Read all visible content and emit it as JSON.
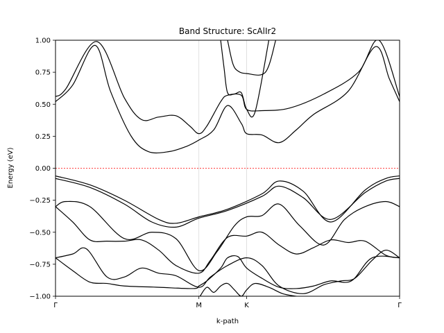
{
  "chart_data": {
    "type": "line",
    "title": "Band Structure: ScAlIr2",
    "xlabel": "k-path",
    "ylabel": "Energy (eV)",
    "ylim": [
      -1.0,
      1.0
    ],
    "yticks": [
      "1.00",
      "0.75",
      "0.50",
      "0.25",
      "0.00",
      "−0.25",
      "−0.50",
      "−0.75",
      "−1.00"
    ],
    "yticks_values": [
      1.0,
      0.75,
      0.5,
      0.25,
      0.0,
      -0.25,
      -0.5,
      -0.75,
      -1.0
    ],
    "k_points": [
      {
        "label": "Γ",
        "x": 0.0
      },
      {
        "label": "M",
        "x": 0.4167
      },
      {
        "label": "K",
        "x": 0.5556
      },
      {
        "label": "Γ",
        "x": 1.0
      }
    ],
    "fermi_level": 0.0,
    "grid": "vertical lines at high-symmetry points",
    "colors": {
      "bands": "#000000",
      "fermi": "#ff0000",
      "grid": "#d9d9d9"
    },
    "series": [
      {
        "x": [
          0.0,
          0.05,
          0.115,
          0.16,
          0.22,
          0.27,
          0.33,
          0.38,
          0.4167,
          0.46,
          0.5,
          0.54,
          0.5556,
          0.6,
          0.65,
          0.7,
          0.75,
          0.85,
          0.93,
          0.97,
          1.0
        ],
        "values": [
          0.52,
          0.65,
          0.96,
          0.6,
          0.25,
          0.13,
          0.13,
          0.17,
          0.22,
          0.3,
          0.49,
          0.35,
          0.27,
          0.26,
          0.2,
          0.3,
          0.42,
          0.6,
          0.95,
          0.7,
          0.52
        ]
      },
      {
        "x": [
          0.0,
          0.03,
          0.12,
          0.2,
          0.25,
          0.3,
          0.35,
          0.39,
          0.4167,
          0.44,
          0.48,
          0.5,
          0.54,
          0.5556,
          0.6,
          0.68,
          0.78,
          0.88,
          0.94,
          1.0
        ],
        "values": [
          0.56,
          0.62,
          0.99,
          0.55,
          0.38,
          0.4,
          0.41,
          0.33,
          0.27,
          0.33,
          0.52,
          0.57,
          0.57,
          0.46,
          0.45,
          0.47,
          0.58,
          0.75,
          1.0,
          0.56
        ]
      },
      {
        "x": [
          0.48,
          0.49,
          0.5,
          0.52,
          0.54,
          0.5556,
          0.58,
          0.62
        ],
        "values": [
          1.0,
          0.78,
          0.59,
          0.58,
          0.59,
          0.46,
          0.44,
          1.0
        ]
      },
      {
        "x": [
          0.5,
          0.515,
          0.53,
          0.5556,
          0.61,
          0.64
        ],
        "values": [
          1.0,
          0.82,
          0.76,
          0.74,
          0.75,
          1.0
        ]
      },
      {
        "x": [
          0.0,
          0.1,
          0.2,
          0.3,
          0.35,
          0.4167,
          0.5,
          0.6,
          0.65,
          0.72,
          0.8,
          0.9,
          0.96,
          1.0
        ],
        "values": [
          -0.06,
          -0.13,
          -0.25,
          -0.4,
          -0.43,
          -0.38,
          -0.32,
          -0.2,
          -0.1,
          -0.18,
          -0.42,
          -0.17,
          -0.08,
          -0.06
        ]
      },
      {
        "x": [
          0.0,
          0.1,
          0.2,
          0.28,
          0.35,
          0.4167,
          0.5,
          0.6,
          0.65,
          0.72,
          0.8,
          0.9,
          0.96,
          1.0
        ],
        "values": [
          -0.08,
          -0.15,
          -0.28,
          -0.42,
          -0.46,
          -0.39,
          -0.33,
          -0.22,
          -0.14,
          -0.23,
          -0.4,
          -0.19,
          -0.1,
          -0.08
        ]
      },
      {
        "x": [
          0.0,
          0.03,
          0.1,
          0.2,
          0.28,
          0.35,
          0.4167,
          0.47,
          0.52,
          0.5556,
          0.6,
          0.65,
          0.71,
          0.78,
          0.84,
          0.9,
          0.96,
          1.0
        ],
        "values": [
          -0.3,
          -0.26,
          -0.3,
          -0.55,
          -0.5,
          -0.55,
          -0.8,
          -0.65,
          -0.45,
          -0.38,
          -0.37,
          -0.28,
          -0.45,
          -0.6,
          -0.4,
          -0.3,
          -0.26,
          -0.3
        ]
      },
      {
        "x": [
          0.0,
          0.05,
          0.1,
          0.15,
          0.2,
          0.25,
          0.3,
          0.35,
          0.4167,
          0.45,
          0.5,
          0.5556,
          0.6,
          0.65,
          0.7,
          0.75,
          0.8,
          0.85,
          0.9,
          0.96,
          1.0
        ],
        "values": [
          -0.3,
          -0.42,
          -0.56,
          -0.57,
          -0.57,
          -0.56,
          -0.64,
          -0.76,
          -0.82,
          -0.72,
          -0.54,
          -0.53,
          -0.5,
          -0.6,
          -0.67,
          -0.62,
          -0.56,
          -0.58,
          -0.57,
          -0.68,
          -0.7
        ]
      },
      {
        "x": [
          0.0,
          0.05,
          0.09,
          0.15,
          0.2,
          0.25,
          0.3,
          0.35,
          0.4167,
          0.45,
          0.5,
          0.5556,
          0.6,
          0.65,
          0.72,
          0.78,
          0.83,
          0.87,
          0.92,
          0.96,
          1.0
        ],
        "values": [
          -0.7,
          -0.67,
          -0.63,
          -0.85,
          -0.85,
          -0.78,
          -0.82,
          -0.84,
          -0.93,
          -0.85,
          -0.76,
          -0.7,
          -0.76,
          -0.92,
          -0.98,
          -0.91,
          -0.88,
          -0.86,
          -0.72,
          -0.64,
          -0.7
        ]
      },
      {
        "x": [
          0.0,
          0.05,
          0.1,
          0.15,
          0.2,
          0.3,
          0.4,
          0.4167,
          0.44,
          0.48,
          0.5,
          0.53,
          0.5556,
          0.6,
          0.65,
          0.7,
          0.75,
          0.8,
          0.86,
          0.92,
          1.0
        ],
        "values": [
          -0.7,
          -0.8,
          -0.89,
          -0.9,
          -0.92,
          -0.93,
          -0.94,
          -0.92,
          -0.88,
          -0.78,
          -0.7,
          -0.69,
          -0.78,
          -0.86,
          -0.93,
          -0.94,
          -0.92,
          -0.88,
          -0.88,
          -0.7,
          -0.7
        ]
      },
      {
        "x": [
          0.42,
          0.44,
          0.46,
          0.48,
          0.5,
          0.52,
          0.54,
          0.5556,
          0.58,
          0.62,
          0.66,
          0.7
        ],
        "values": [
          -1.0,
          -0.93,
          -0.97,
          -0.92,
          -0.9,
          -0.95,
          -1.0,
          -0.95,
          -0.9,
          -0.93,
          -0.98,
          -1.0
        ]
      }
    ]
  }
}
